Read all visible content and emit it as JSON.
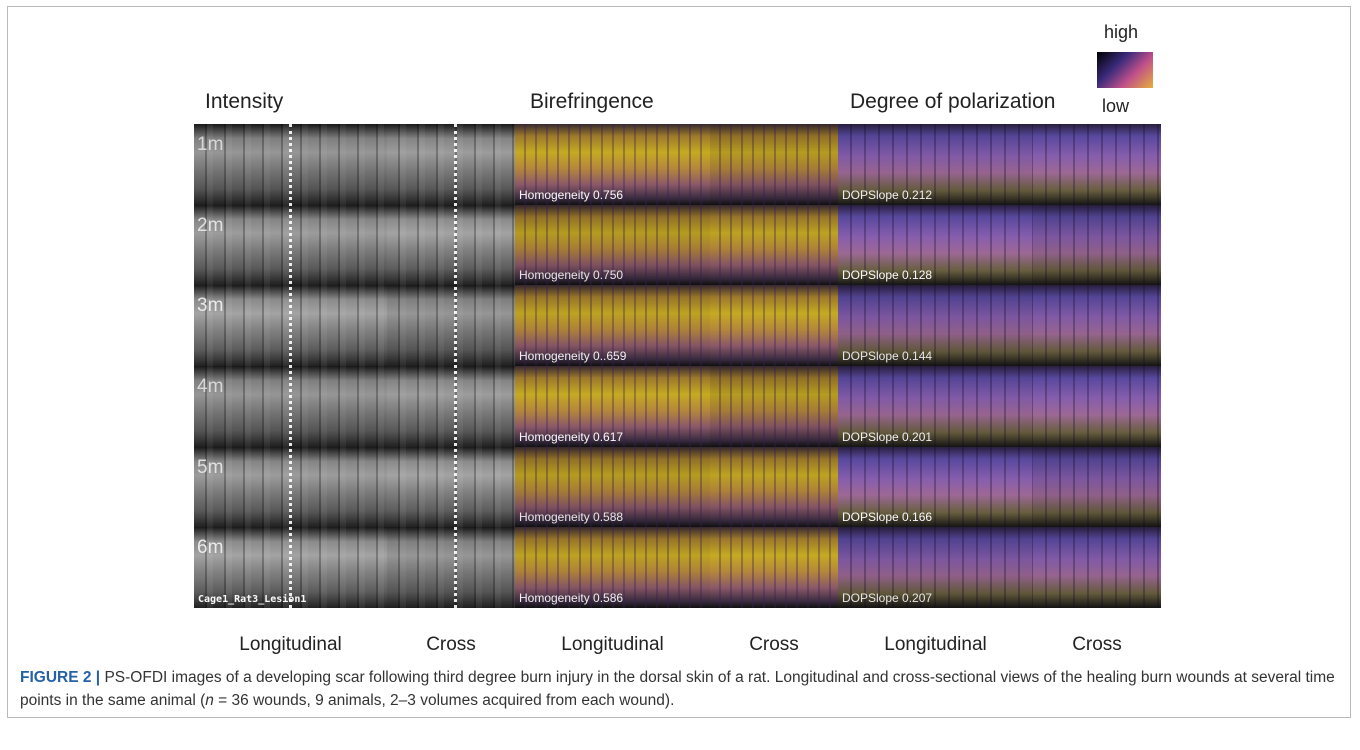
{
  "legend": {
    "high": "high",
    "low": "low"
  },
  "panels": [
    {
      "title": "Intensity",
      "columns": [
        "Longitudinal",
        "Cross"
      ]
    },
    {
      "title": "Birefringence",
      "columns": [
        "Longitudinal",
        "Cross"
      ]
    },
    {
      "title": "Degree of polarization",
      "columns": [
        "Longitudinal",
        "Cross"
      ]
    }
  ],
  "rows": [
    {
      "label": "1m",
      "homogeneity": "Homogeneity 0.756",
      "dop": "DOPSlope 0.212"
    },
    {
      "label": "2m",
      "homogeneity": "Homogeneity 0.750",
      "dop": "DOPSlope 0.128"
    },
    {
      "label": "3m",
      "homogeneity": "Homogeneity 0..659",
      "dop": "DOPSlope 0.144"
    },
    {
      "label": "4m",
      "homogeneity": "Homogeneity 0.617",
      "dop": "DOPSlope 0.201"
    },
    {
      "label": "5m",
      "homogeneity": "Homogeneity 0.588",
      "dop": "DOPSlope 0.166"
    },
    {
      "label": "6m",
      "homogeneity": "Homogeneity 0.586",
      "dop": "DOPSlope 0.207"
    }
  ],
  "sample_id": "Cage1_Rat3_Lesion1",
  "caption": {
    "label": "FIGURE 2 |",
    "parts": [
      "PS-OFDI images of a developing scar following third degree burn injury in the dorsal skin of a rat. Longitudinal and cross-sectional views of the healing burn wounds at several time points in the same animal (",
      "n",
      " = 36 wounds, 9 animals, 2–3 volumes acquired from each wound)."
    ]
  }
}
